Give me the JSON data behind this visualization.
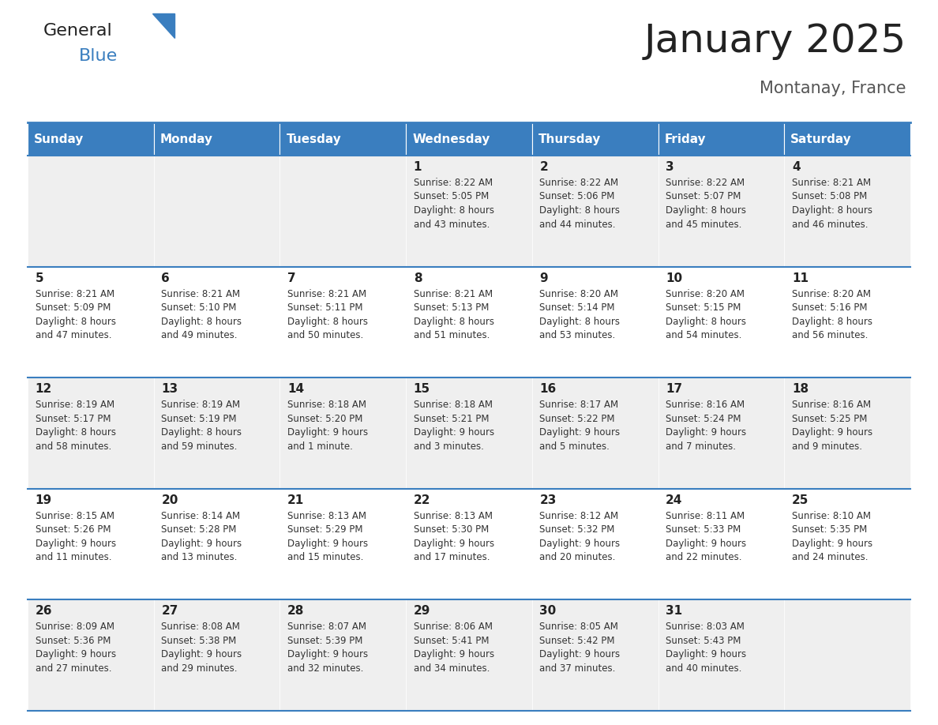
{
  "title": "January 2025",
  "subtitle": "Montanay, France",
  "header_bg": "#3a7ebf",
  "header_text": "#ffffff",
  "row_bg_odd": "#efefef",
  "row_bg_even": "#ffffff",
  "border_color": "#3a7ebf",
  "day_headers": [
    "Sunday",
    "Monday",
    "Tuesday",
    "Wednesday",
    "Thursday",
    "Friday",
    "Saturday"
  ],
  "weeks": [
    [
      {
        "day": "",
        "info": ""
      },
      {
        "day": "",
        "info": ""
      },
      {
        "day": "",
        "info": ""
      },
      {
        "day": "1",
        "info": "Sunrise: 8:22 AM\nSunset: 5:05 PM\nDaylight: 8 hours\nand 43 minutes."
      },
      {
        "day": "2",
        "info": "Sunrise: 8:22 AM\nSunset: 5:06 PM\nDaylight: 8 hours\nand 44 minutes."
      },
      {
        "day": "3",
        "info": "Sunrise: 8:22 AM\nSunset: 5:07 PM\nDaylight: 8 hours\nand 45 minutes."
      },
      {
        "day": "4",
        "info": "Sunrise: 8:21 AM\nSunset: 5:08 PM\nDaylight: 8 hours\nand 46 minutes."
      }
    ],
    [
      {
        "day": "5",
        "info": "Sunrise: 8:21 AM\nSunset: 5:09 PM\nDaylight: 8 hours\nand 47 minutes."
      },
      {
        "day": "6",
        "info": "Sunrise: 8:21 AM\nSunset: 5:10 PM\nDaylight: 8 hours\nand 49 minutes."
      },
      {
        "day": "7",
        "info": "Sunrise: 8:21 AM\nSunset: 5:11 PM\nDaylight: 8 hours\nand 50 minutes."
      },
      {
        "day": "8",
        "info": "Sunrise: 8:21 AM\nSunset: 5:13 PM\nDaylight: 8 hours\nand 51 minutes."
      },
      {
        "day": "9",
        "info": "Sunrise: 8:20 AM\nSunset: 5:14 PM\nDaylight: 8 hours\nand 53 minutes."
      },
      {
        "day": "10",
        "info": "Sunrise: 8:20 AM\nSunset: 5:15 PM\nDaylight: 8 hours\nand 54 minutes."
      },
      {
        "day": "11",
        "info": "Sunrise: 8:20 AM\nSunset: 5:16 PM\nDaylight: 8 hours\nand 56 minutes."
      }
    ],
    [
      {
        "day": "12",
        "info": "Sunrise: 8:19 AM\nSunset: 5:17 PM\nDaylight: 8 hours\nand 58 minutes."
      },
      {
        "day": "13",
        "info": "Sunrise: 8:19 AM\nSunset: 5:19 PM\nDaylight: 8 hours\nand 59 minutes."
      },
      {
        "day": "14",
        "info": "Sunrise: 8:18 AM\nSunset: 5:20 PM\nDaylight: 9 hours\nand 1 minute."
      },
      {
        "day": "15",
        "info": "Sunrise: 8:18 AM\nSunset: 5:21 PM\nDaylight: 9 hours\nand 3 minutes."
      },
      {
        "day": "16",
        "info": "Sunrise: 8:17 AM\nSunset: 5:22 PM\nDaylight: 9 hours\nand 5 minutes."
      },
      {
        "day": "17",
        "info": "Sunrise: 8:16 AM\nSunset: 5:24 PM\nDaylight: 9 hours\nand 7 minutes."
      },
      {
        "day": "18",
        "info": "Sunrise: 8:16 AM\nSunset: 5:25 PM\nDaylight: 9 hours\nand 9 minutes."
      }
    ],
    [
      {
        "day": "19",
        "info": "Sunrise: 8:15 AM\nSunset: 5:26 PM\nDaylight: 9 hours\nand 11 minutes."
      },
      {
        "day": "20",
        "info": "Sunrise: 8:14 AM\nSunset: 5:28 PM\nDaylight: 9 hours\nand 13 minutes."
      },
      {
        "day": "21",
        "info": "Sunrise: 8:13 AM\nSunset: 5:29 PM\nDaylight: 9 hours\nand 15 minutes."
      },
      {
        "day": "22",
        "info": "Sunrise: 8:13 AM\nSunset: 5:30 PM\nDaylight: 9 hours\nand 17 minutes."
      },
      {
        "day": "23",
        "info": "Sunrise: 8:12 AM\nSunset: 5:32 PM\nDaylight: 9 hours\nand 20 minutes."
      },
      {
        "day": "24",
        "info": "Sunrise: 8:11 AM\nSunset: 5:33 PM\nDaylight: 9 hours\nand 22 minutes."
      },
      {
        "day": "25",
        "info": "Sunrise: 8:10 AM\nSunset: 5:35 PM\nDaylight: 9 hours\nand 24 minutes."
      }
    ],
    [
      {
        "day": "26",
        "info": "Sunrise: 8:09 AM\nSunset: 5:36 PM\nDaylight: 9 hours\nand 27 minutes."
      },
      {
        "day": "27",
        "info": "Sunrise: 8:08 AM\nSunset: 5:38 PM\nDaylight: 9 hours\nand 29 minutes."
      },
      {
        "day": "28",
        "info": "Sunrise: 8:07 AM\nSunset: 5:39 PM\nDaylight: 9 hours\nand 32 minutes."
      },
      {
        "day": "29",
        "info": "Sunrise: 8:06 AM\nSunset: 5:41 PM\nDaylight: 9 hours\nand 34 minutes."
      },
      {
        "day": "30",
        "info": "Sunrise: 8:05 AM\nSunset: 5:42 PM\nDaylight: 9 hours\nand 37 minutes."
      },
      {
        "day": "31",
        "info": "Sunrise: 8:03 AM\nSunset: 5:43 PM\nDaylight: 9 hours\nand 40 minutes."
      },
      {
        "day": "",
        "info": ""
      }
    ]
  ],
  "title_fontsize": 36,
  "subtitle_fontsize": 15,
  "header_fontsize": 11,
  "day_num_fontsize": 11,
  "cell_text_fontsize": 8.5,
  "logo_general_fontsize": 16,
  "logo_blue_fontsize": 16
}
